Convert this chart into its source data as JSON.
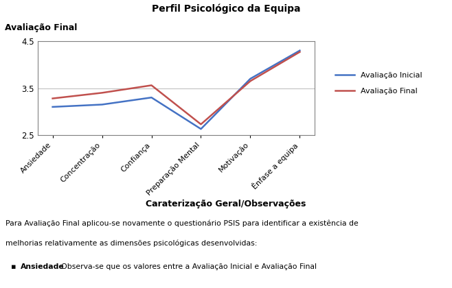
{
  "title": "Perfil Psicológico da Equipa",
  "section_label": "Avaliação Final",
  "categories": [
    "Ansiedade",
    "Concentração",
    "Confiança",
    "Preparação Mental",
    "Motivação",
    "Ênfase a equipa"
  ],
  "avaliacao_inicial": [
    3.1,
    3.15,
    3.3,
    2.63,
    3.7,
    4.3
  ],
  "avaliacao_final": [
    3.28,
    3.4,
    3.56,
    2.73,
    3.65,
    4.27
  ],
  "line_color_inicial": "#4472C4",
  "line_color_final": "#C0504D",
  "ylim": [
    2.5,
    4.5
  ],
  "yticks": [
    2.5,
    3.5,
    4.5
  ],
  "legend_inicial": "Avaliação Inicial",
  "legend_final": "Avaliação Final",
  "bottom_section_title": "Caraterização Geral/Observações",
  "bottom_line1": "Para Avaliação Final aplicou-se novamente o questionário PSIS para identificar a existência de",
  "bottom_line2": "melhorias relativamente as dimensões psicológicas desenvolvidas:",
  "bottom_line3_bold": "Ansiedade",
  "bottom_line3_rest": ": Observa-se que os valores entre a Avaliação Inicial e Avaliação Final",
  "bg_color": "#ffffff",
  "plot_bg": "#ffffff",
  "border_color": "#000000",
  "grid_color": "#C0C0C0",
  "fig_w": 6.58,
  "fig_h": 4.2,
  "dpi": 100
}
